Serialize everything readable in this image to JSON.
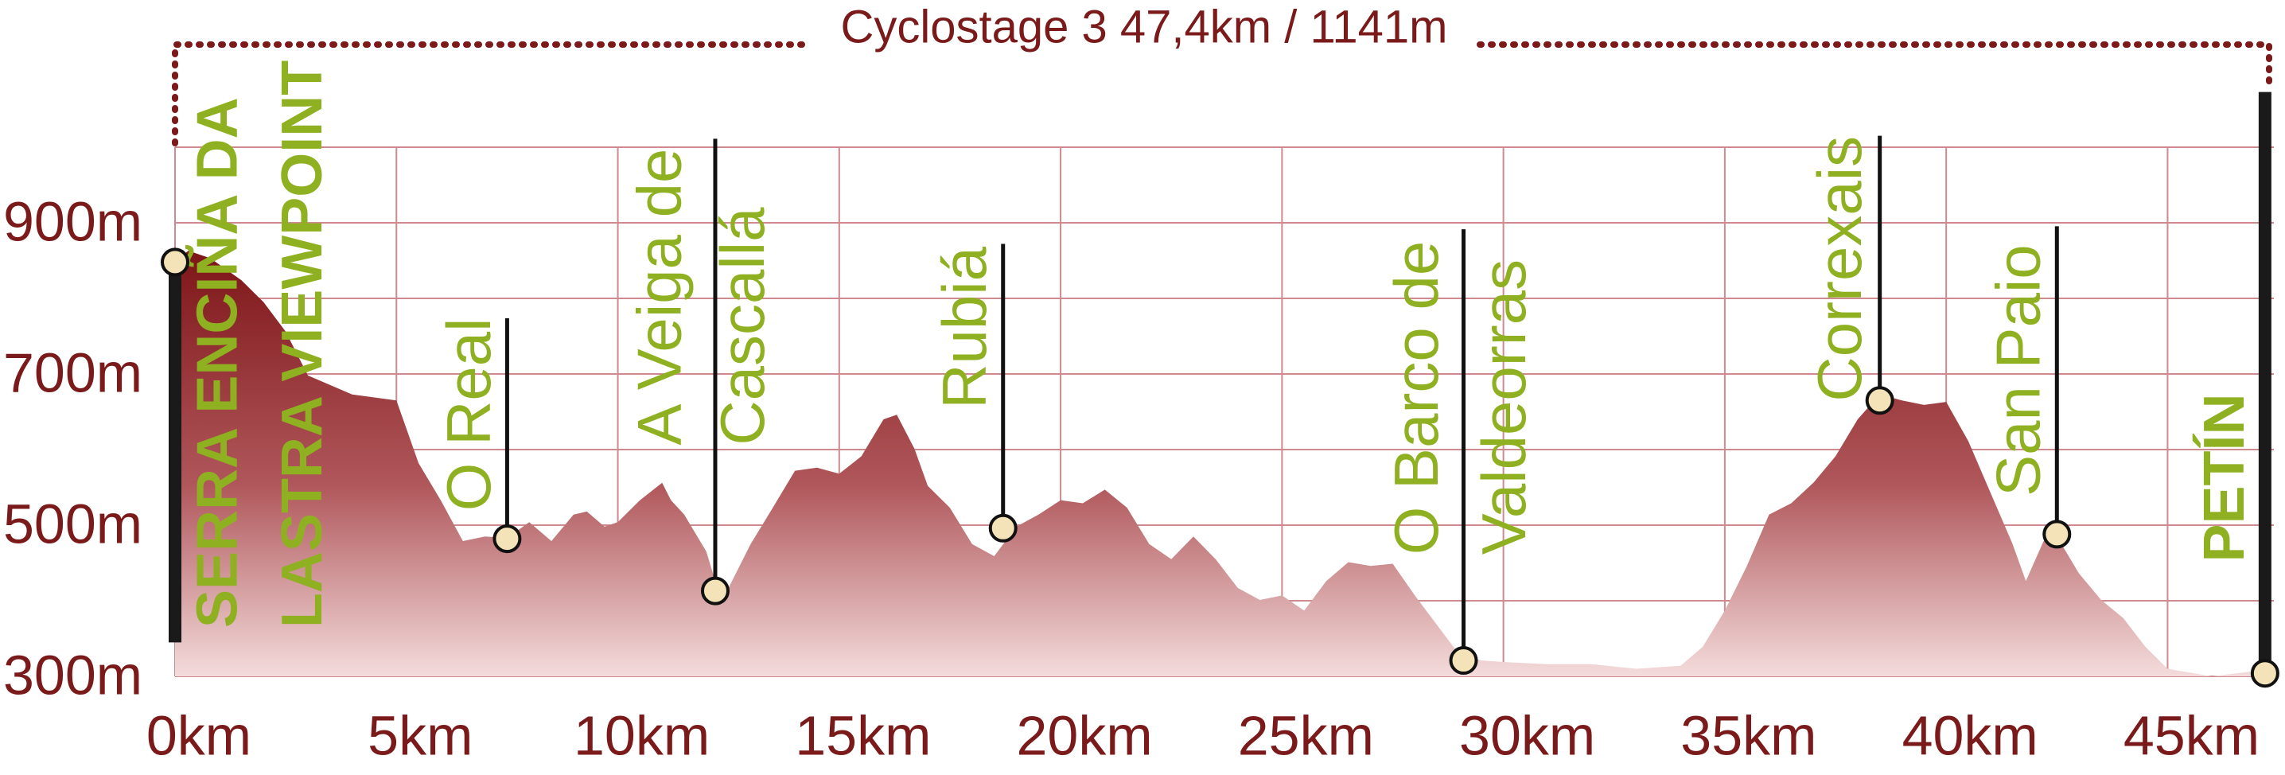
{
  "chart_data": {
    "type": "area",
    "title": "Cyclostage 3 47,4km / 1141m",
    "x": [
      0,
      0.3,
      0.8,
      1.5,
      2,
      2.5,
      3,
      4,
      5,
      5.5,
      6,
      6.5,
      7,
      7.5,
      8,
      8.5,
      9,
      9.3,
      9.7,
      10,
      10.5,
      11,
      11.2,
      11.5,
      12,
      12.2,
      12.5,
      13,
      13.5,
      14,
      14.5,
      15,
      15.5,
      16,
      16.3,
      16.7,
      17,
      17.5,
      18,
      18.5,
      19,
      19.5,
      20,
      20.5,
      21,
      21.5,
      22,
      22.5,
      23,
      23.5,
      24,
      24.5,
      25,
      25.5,
      26,
      26.5,
      27,
      27.5,
      28,
      28.5,
      29,
      29.5,
      30,
      31,
      32,
      33,
      34,
      34.5,
      35,
      35.5,
      36,
      36.5,
      37,
      37.5,
      38,
      38.5,
      39,
      39.5,
      40,
      40.5,
      41,
      41.5,
      41.8,
      42.2,
      42.5,
      43,
      43.5,
      44,
      44.5,
      45,
      46,
      47.4
    ],
    "values": [
      848,
      863,
      853,
      824,
      795,
      756,
      698,
      673,
      665,
      582,
      533,
      479,
      485,
      483,
      504,
      479,
      514,
      518,
      498,
      504,
      533,
      556,
      533,
      514,
      465,
      426,
      417,
      475,
      523,
      572,
      576,
      568,
      591,
      640,
      646,
      601,
      552,
      523,
      475,
      459,
      498,
      514,
      533,
      529,
      547,
      523,
      475,
      455,
      485,
      455,
      417,
      401,
      407,
      387,
      426,
      451,
      446,
      449,
      407,
      368,
      329,
      321,
      319,
      316,
      316,
      310,
      314,
      339,
      387,
      446,
      514,
      529,
      556,
      591,
      640,
      673,
      665,
      659,
      663,
      611,
      543,
      475,
      426,
      479,
      485,
      436,
      401,
      377,
      339,
      310,
      300,
      310
    ],
    "color": "#8b1c1f",
    "xlim": [
      0,
      47.4
    ],
    "ylim": [
      300,
      1000
    ],
    "xticks": [
      {
        "value": 0,
        "label": "0km"
      },
      {
        "value": 5,
        "label": "5km"
      },
      {
        "value": 10,
        "label": "10km"
      },
      {
        "value": 15,
        "label": "15km"
      },
      {
        "value": 20,
        "label": "20km"
      },
      {
        "value": 25,
        "label": "25km"
      },
      {
        "value": 30,
        "label": "30km"
      },
      {
        "value": 35,
        "label": "35km"
      },
      {
        "value": 40,
        "label": "40km"
      },
      {
        "value": 45,
        "label": "45km"
      }
    ],
    "yticks": [
      {
        "value": 300,
        "label": "300m"
      },
      {
        "value": 500,
        "label": "500m"
      },
      {
        "value": 700,
        "label": "700m"
      },
      {
        "value": 900,
        "label": "900m"
      }
    ],
    "ygrid": [
      300,
      400,
      500,
      600,
      700,
      800,
      900,
      1000
    ],
    "grid": true,
    "waypoints": [
      {
        "label": [
          "SERRA ENCIÑA DA",
          "LASTRA VIEWPOINT"
        ],
        "x": 0,
        "y": 848
      },
      {
        "label": [
          "O Real"
        ],
        "x": 7.5,
        "y": 482
      },
      {
        "label": [
          "A Veiga de",
          "Cascallá"
        ],
        "x": 12.2,
        "y": 413
      },
      {
        "label": [
          "Rubiá"
        ],
        "x": 18.7,
        "y": 496
      },
      {
        "label": [
          "O Barco de",
          "Valdeorras"
        ],
        "x": 29.1,
        "y": 321
      },
      {
        "label": [
          "Correxais"
        ],
        "x": 38.5,
        "y": 665
      },
      {
        "label": [
          "San Paio"
        ],
        "x": 42.5,
        "y": 488
      },
      {
        "label": [
          "PETÍN"
        ],
        "x": 47.2,
        "y": 304
      }
    ]
  }
}
